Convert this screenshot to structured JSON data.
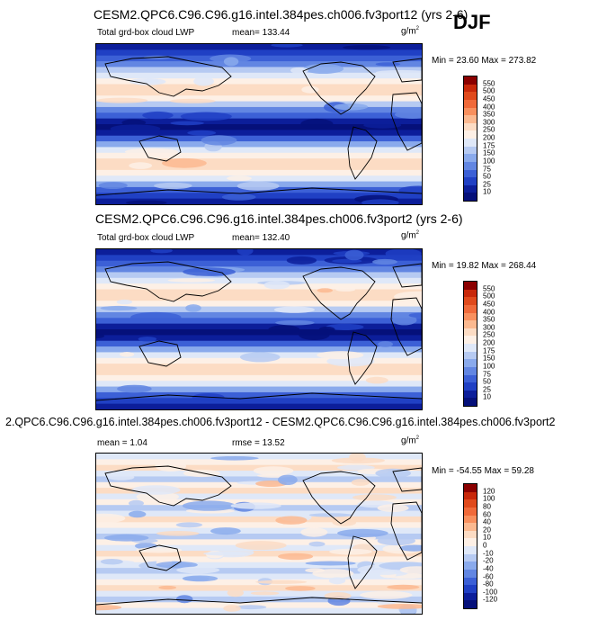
{
  "season": "DJF",
  "units": "g/m",
  "units_exp": "2",
  "panels": [
    {
      "title": "CESM2.QPC6.C96.C96.g16.intel.384pes.ch006.fv3port12 (yrs 2-6)",
      "left_label": "Total grd-box cloud LWP",
      "stat1": "mean= 133.44",
      "stat2": "",
      "minmax": "Min =  23.60 Max = 273.82",
      "levels": [
        "550",
        "500",
        "450",
        "400",
        "350",
        "300",
        "250",
        "200",
        "175",
        "150",
        "100",
        "75",
        "50",
        "25",
        "10"
      ],
      "colors": [
        "#8b0000",
        "#c8280a",
        "#e04a1c",
        "#f06a3a",
        "#f8905e",
        "#fbb990",
        "#fcdcc4",
        "#fdf0e6",
        "#dfe8f8",
        "#b6caf2",
        "#8aaaec",
        "#6286e2",
        "#3c60d6",
        "#2040c4",
        "#0c1e9a",
        "#05107a"
      ]
    },
    {
      "title": "CESM2.QPC6.C96.C96.g16.intel.384pes.ch006.fv3port2 (yrs 2-6)",
      "left_label": "Total grd-box cloud LWP",
      "stat1": "mean= 132.40",
      "stat2": "",
      "minmax": "Min =  19.82 Max = 268.44",
      "levels": [
        "550",
        "500",
        "450",
        "400",
        "350",
        "300",
        "250",
        "200",
        "175",
        "150",
        "100",
        "75",
        "50",
        "25",
        "10"
      ],
      "colors": [
        "#8b0000",
        "#c8280a",
        "#e04a1c",
        "#f06a3a",
        "#f8905e",
        "#fbb990",
        "#fcdcc4",
        "#fdf0e6",
        "#dfe8f8",
        "#b6caf2",
        "#8aaaec",
        "#6286e2",
        "#3c60d6",
        "#2040c4",
        "#0c1e9a",
        "#05107a"
      ]
    },
    {
      "title": "2.QPC6.C96.C96.g16.intel.384pes.ch006.fv3port12 - CESM2.QPC6.C96.C96.g16.intel.384pes.ch006.fv3port2",
      "left_label": "mean =   1.04",
      "stat1": "rmse =  13.52",
      "stat2": "",
      "minmax": "Min = -54.55 Max =  59.28",
      "levels": [
        "120",
        "100",
        "80",
        "60",
        "40",
        "20",
        "10",
        "0",
        "-10",
        "-20",
        "-40",
        "-60",
        "-80",
        "-100",
        "-120"
      ],
      "colors": [
        "#8b0000",
        "#c8280a",
        "#e04a1c",
        "#f06a3a",
        "#f8905e",
        "#fbb990",
        "#fcdcc4",
        "#fdf0e6",
        "#dfe8f8",
        "#b6caf2",
        "#8aaaec",
        "#6286e2",
        "#3c60d6",
        "#2040c4",
        "#0c1e9a",
        "#05107a"
      ]
    }
  ]
}
